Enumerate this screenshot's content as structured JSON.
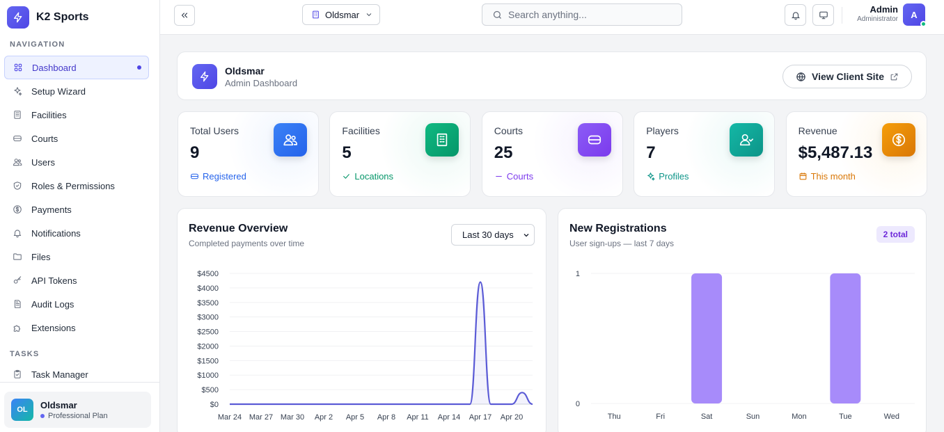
{
  "app": {
    "name": "K2 Sports"
  },
  "sidebar": {
    "sections": {
      "navigation": "NAVIGATION",
      "tasks": "TASKS"
    },
    "items": [
      {
        "label": "Dashboard",
        "icon": "dashboard-grid-icon",
        "active": true
      },
      {
        "label": "Setup Wizard",
        "icon": "sparkles-icon"
      },
      {
        "label": "Facilities",
        "icon": "building-icon"
      },
      {
        "label": "Courts",
        "icon": "court-layers-icon"
      },
      {
        "label": "Users",
        "icon": "users-icon"
      },
      {
        "label": "Roles & Permissions",
        "icon": "shield-icon"
      },
      {
        "label": "Payments",
        "icon": "dollar-circle-icon"
      },
      {
        "label": "Notifications",
        "icon": "bell-icon"
      },
      {
        "label": "Files",
        "icon": "folder-icon"
      },
      {
        "label": "API Tokens",
        "icon": "key-icon"
      },
      {
        "label": "Audit Logs",
        "icon": "document-icon"
      },
      {
        "label": "Extensions",
        "icon": "puzzle-icon"
      }
    ],
    "task_items": [
      {
        "label": "Task Manager",
        "icon": "clipboard-icon"
      }
    ],
    "org": {
      "initials": "OL",
      "name": "Oldsmar",
      "plan": "Professional Plan"
    }
  },
  "topbar": {
    "site": "Oldsmar",
    "search_placeholder": "Search anything...",
    "user": {
      "name": "Admin",
      "role": "Administrator",
      "initial": "A"
    }
  },
  "header": {
    "title": "Oldsmar",
    "subtitle": "Admin Dashboard",
    "view_site_label": "View Client Site"
  },
  "stats": [
    {
      "label": "Total Users",
      "value": "9",
      "foot": "Registered",
      "color": "#3b82f6",
      "foot_color": "#2563eb",
      "icon": "users-icon"
    },
    {
      "label": "Facilities",
      "value": "5",
      "foot": "Locations",
      "color": "#10b981",
      "foot_color": "#059669",
      "icon": "building-icon"
    },
    {
      "label": "Courts",
      "value": "25",
      "foot": "Courts",
      "color": "#8b5cf6",
      "foot_color": "#7c3aed",
      "icon": "court-layers-icon"
    },
    {
      "label": "Players",
      "value": "7",
      "foot": "Profiles",
      "color": "#14b8a6",
      "foot_color": "#0d9488",
      "icon": "user-icon"
    },
    {
      "label": "Revenue",
      "value": "$5,487.13",
      "foot": "This month",
      "color": "#f59e0b",
      "foot_color": "#d97706",
      "icon": "dollar-circle-icon"
    }
  ],
  "revenue_chart": {
    "title": "Revenue Overview",
    "subtitle": "Completed payments over time",
    "range": "Last 30 days"
  },
  "registrations_chart": {
    "title": "New Registrations",
    "subtitle": "User sign-ups — last 7 days",
    "badge": "2 total"
  },
  "chart_data": [
    {
      "type": "area",
      "title": "Revenue Overview",
      "x_ticks": [
        "Mar 24",
        "Mar 27",
        "Mar 30",
        "Apr 2",
        "Apr 5",
        "Apr 8",
        "Apr 11",
        "Apr 14",
        "Apr 17",
        "Apr 20"
      ],
      "y_ticks": [
        "$4500",
        "$4000",
        "$3500",
        "$3000",
        "$2500",
        "$2000",
        "$1500",
        "$1000",
        "$500",
        "$0"
      ],
      "ylim": [
        0,
        4500
      ],
      "x": [
        "Mar 24",
        "Mar 25",
        "Mar 26",
        "Mar 27",
        "Mar 28",
        "Mar 29",
        "Mar 30",
        "Mar 31",
        "Apr 1",
        "Apr 2",
        "Apr 3",
        "Apr 4",
        "Apr 5",
        "Apr 6",
        "Apr 7",
        "Apr 8",
        "Apr 9",
        "Apr 10",
        "Apr 11",
        "Apr 12",
        "Apr 13",
        "Apr 14",
        "Apr 15",
        "Apr 16",
        "Apr 17",
        "Apr 18",
        "Apr 19",
        "Apr 20",
        "Apr 21",
        "Apr 22"
      ],
      "values": [
        0,
        0,
        0,
        0,
        0,
        0,
        0,
        0,
        0,
        0,
        0,
        0,
        0,
        0,
        0,
        0,
        0,
        0,
        0,
        0,
        0,
        0,
        0,
        0,
        4200,
        0,
        0,
        0,
        400,
        0
      ],
      "color": "#5b5bd6",
      "grid": true
    },
    {
      "type": "bar",
      "title": "New Registrations",
      "categories": [
        "Thu",
        "Fri",
        "Sat",
        "Sun",
        "Mon",
        "Tue",
        "Wed"
      ],
      "values": [
        0,
        0,
        1,
        0,
        0,
        1,
        0
      ],
      "y_ticks": [
        "1",
        "0"
      ],
      "ylim": [
        0,
        1
      ],
      "color": "#a78bfa",
      "grid": true
    }
  ]
}
